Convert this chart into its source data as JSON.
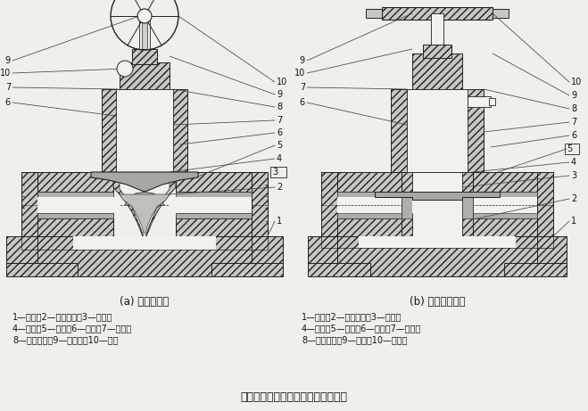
{
  "fig_width": 6.59,
  "fig_height": 4.61,
  "dpi": 100,
  "bg_color": "#f0efea",
  "title": "『堰式隔膜阀、直通式隔膜阀结构』",
  "title_fontsize": 9,
  "left_caption": "(a) 堰式隔膜阀",
  "right_caption": "(b) 直通式隔膜阀",
  "left_legend_lines": [
    "1—阀体；2—阀体衬里；3—隔膜；",
    "4—螺钉；5—阀盖；6—阀瓣；7—阀体；",
    "8—阀杆螺母；9—指示器；10—手轮"
  ],
  "right_legend_lines": [
    "1—阀体；2—阀体衬里；3—隔膜；",
    "4—螺钉；5—阀盖；6—阀瓣；7—阀杆；",
    "8—阀杆螺母；9—手轮；10—指示器"
  ]
}
